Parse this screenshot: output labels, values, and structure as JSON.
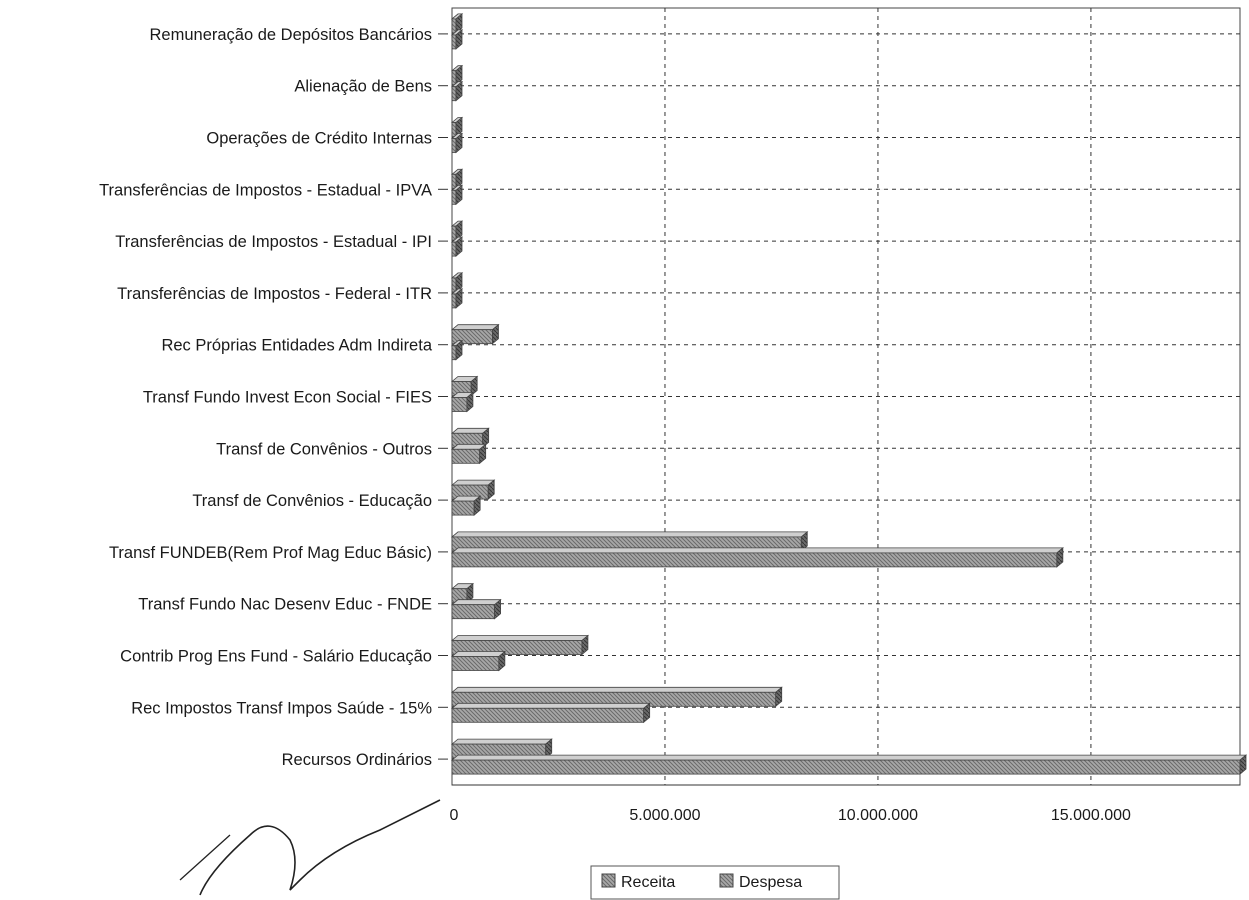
{
  "chart_data": {
    "type": "bar",
    "orientation": "horizontal",
    "categories": [
      "Remuneração de Depósitos Bancários",
      "Alienação de Bens",
      "Operações de Crédito Internas",
      "Transferências de Impostos - Estadual - IPVA",
      "Transferências de Impostos - Estadual - IPI",
      "Transferências de Impostos - Federal - ITR",
      "Rec Próprias Entidades Adm Indireta",
      "Transf Fundo Invest Econ Social - FIES",
      "Transf de Convênios - Outros",
      "Transf de Convênios - Educação",
      "Transf FUNDEB(Rem Prof Mag Educ Básic)",
      "Transf Fundo Nac Desenv Educ - FNDE",
      "Contrib Prog Ens Fund - Salário Educação",
      "Rec Impostos Transf Impos Saúde - 15%",
      "Recursos Ordinários"
    ],
    "series": [
      {
        "name": "Receita",
        "values": [
          0,
          0,
          0,
          0,
          0,
          0,
          950000,
          450000,
          720000,
          850000,
          8200000,
          350000,
          3050000,
          7600000,
          2200000
        ]
      },
      {
        "name": "Despesa",
        "values": [
          0,
          0,
          0,
          0,
          0,
          0,
          0,
          350000,
          650000,
          520000,
          14200000,
          1000000,
          1100000,
          4500000,
          18500000
        ]
      }
    ],
    "xlim": [
      0,
      18500000
    ],
    "xticks": [
      0,
      5000000,
      10000000,
      15000000
    ],
    "xtick_labels": [
      "0",
      "5.000.000",
      "10.000.000",
      "15.000.000"
    ],
    "title": "",
    "xlabel": "",
    "ylabel": "",
    "grid": true,
    "legend": "bottom-center",
    "colors": {
      "bar": "#9a9a9a",
      "bar_dark": "#555555",
      "grid": "#333333"
    }
  }
}
